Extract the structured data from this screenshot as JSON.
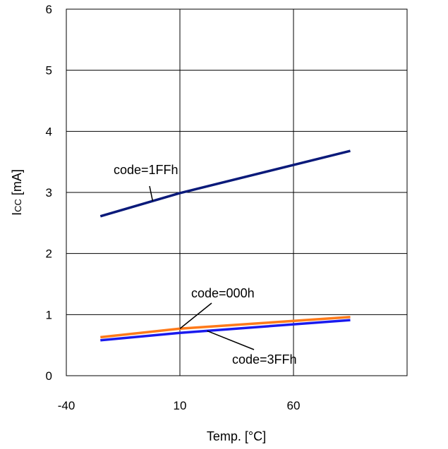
{
  "chart_data": {
    "type": "line",
    "xlabel": "Temp. [°C]",
    "ylabel_main": "I",
    "ylabel_sub": "CC",
    "ylabel_unit": " [mA]",
    "xlim": [
      -40,
      110
    ],
    "ylim": [
      0,
      6
    ],
    "x_ticks": [
      -40,
      10,
      60
    ],
    "x_tick_labels": [
      "-40",
      "10",
      "60"
    ],
    "y_ticks": [
      0,
      1,
      2,
      3,
      4,
      5,
      6
    ],
    "y_tick_labels": [
      "0",
      "1",
      "2",
      "3",
      "4",
      "5",
      "6"
    ],
    "grid": true,
    "legend": "none",
    "series": [
      {
        "name": "code=1FFh",
        "color": "#0a1a7a",
        "x": [
          -25,
          10,
          85
        ],
        "y": [
          2.61,
          2.99,
          3.68
        ]
      },
      {
        "name": "code=000h",
        "color": "#ff7a1a",
        "x": [
          -25,
          10,
          85
        ],
        "y": [
          0.63,
          0.77,
          0.96
        ]
      },
      {
        "name": "code=3FFh",
        "color": "#1a1aee",
        "x": [
          -25,
          10,
          85
        ],
        "y": [
          0.58,
          0.7,
          0.91
        ]
      }
    ],
    "annotations": [
      {
        "text": "code=1FFh",
        "series": 0,
        "at_x": -2
      },
      {
        "text": "code=000h",
        "series": 1,
        "at_x": 10
      },
      {
        "text": "code=3FFh",
        "series": 2,
        "at_x": 22
      }
    ]
  }
}
